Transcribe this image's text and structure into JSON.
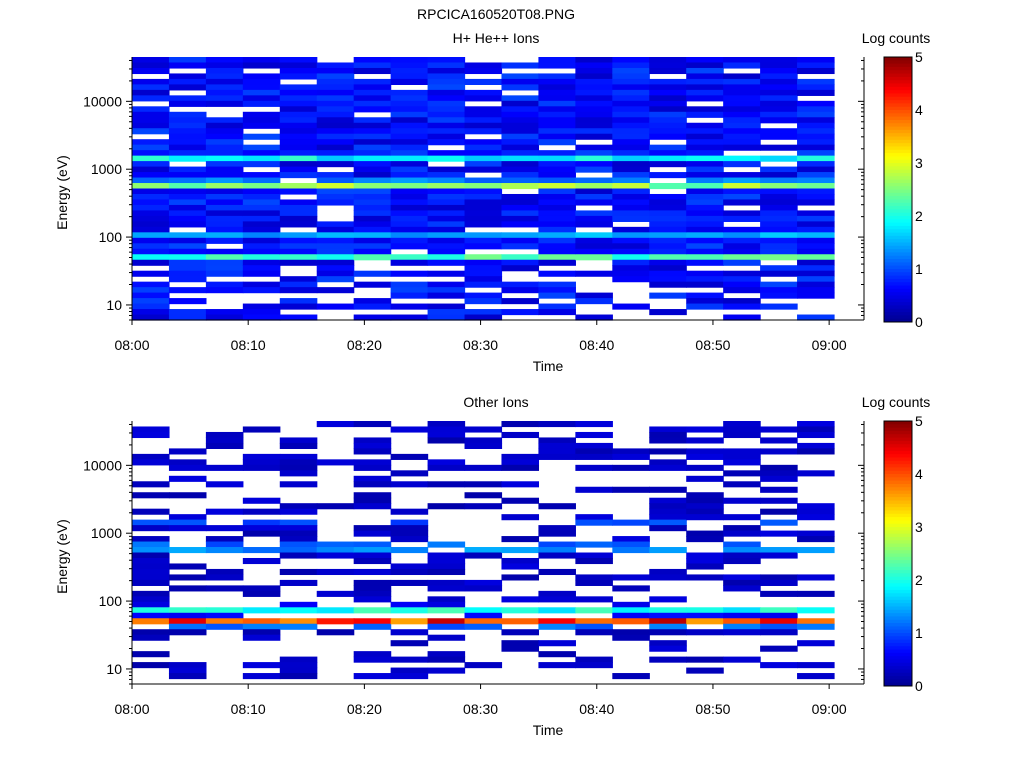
{
  "figure_title": "RPCICA160520T08.PNG",
  "colormap": [
    "#00008f",
    "#0000ff",
    "#007fff",
    "#00ffff",
    "#7fff7f",
    "#ffff00",
    "#ff7f00",
    "#ff0000",
    "#7f0000"
  ],
  "chart_data": [
    {
      "type": "heatmap",
      "title": "H+ He++ Ions",
      "xlabel": "Time",
      "ylabel": "Energy (eV)",
      "x_range": [
        "08:00",
        "09:03"
      ],
      "y_range": [
        6,
        45000
      ],
      "yscale": "log",
      "xticks": [
        "08:00",
        "08:10",
        "08:20",
        "08:30",
        "08:40",
        "08:50",
        "09:00"
      ],
      "yticks": [
        10,
        100,
        1000,
        10000
      ],
      "ytick_labels": [
        "10",
        "100",
        "1000",
        "10000"
      ],
      "colorbar": {
        "label": "Log counts",
        "range": [
          0,
          5
        ],
        "ticks": [
          "0",
          "1",
          "2",
          "3",
          "4",
          "5"
        ]
      },
      "time_bins": 19,
      "energy_bins": 48,
      "bands": [
        {
          "energy_eV": 600,
          "log_counts": 2.9
        },
        {
          "energy_eV": 1500,
          "log_counts": 2.0
        },
        {
          "energy_eV": 52,
          "log_counts": 2.2
        },
        {
          "energy_eV": 110,
          "log_counts": 1.5
        }
      ],
      "base_log_counts": 0.65,
      "empty_fraction": 0.11,
      "low_energy_cutoff_eV": 40,
      "seed": 11
    },
    {
      "type": "heatmap",
      "title": "Other Ions",
      "xlabel": "Time",
      "ylabel": "Energy (eV)",
      "x_range": [
        "08:00",
        "09:03"
      ],
      "y_range": [
        6,
        45000
      ],
      "yscale": "log",
      "xticks": [
        "08:00",
        "08:10",
        "08:20",
        "08:30",
        "08:40",
        "08:50",
        "09:00"
      ],
      "yticks": [
        10,
        100,
        1000,
        10000
      ],
      "ytick_labels": [
        "10",
        "100",
        "1000",
        "10000"
      ],
      "colorbar": {
        "label": "Log counts",
        "range": [
          0,
          5
        ],
        "ticks": [
          "0",
          "1",
          "2",
          "3",
          "4",
          "5"
        ]
      },
      "time_bins": 19,
      "energy_bins": 48,
      "bands": [
        {
          "energy_eV": 50,
          "log_counts": 4.2
        },
        {
          "energy_eV": 75,
          "log_counts": 2.0
        },
        {
          "energy_eV": 620,
          "log_counts": 1.8
        },
        {
          "energy_eV": 1500,
          "log_counts": 1.1
        }
      ],
      "base_log_counts": 0.3,
      "empty_fraction": 0.55,
      "low_energy_cutoff_eV": 30,
      "seed": 29
    }
  ]
}
